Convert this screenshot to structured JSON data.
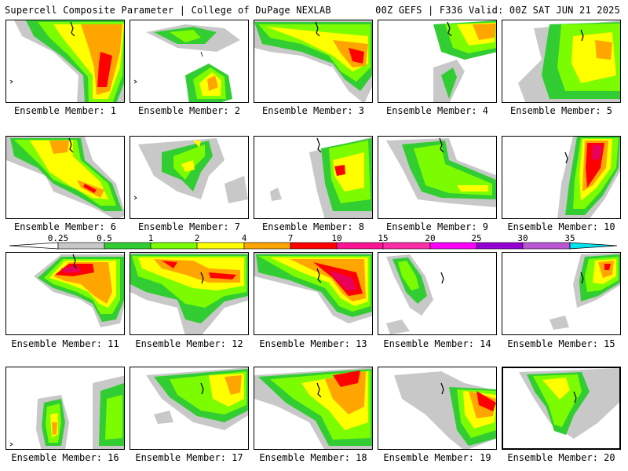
{
  "header": {
    "title_left": "Supercell Composite Parameter | College of DuPage NEXLAB",
    "title_right": "00Z GEFS | F336 Valid: 00Z SAT JUN 21 2025"
  },
  "colorbar": {
    "ticks": [
      "0.25",
      "0.5",
      "1",
      "2",
      "4",
      "7",
      "10",
      "15",
      "20",
      "25",
      "30",
      "35"
    ],
    "colors": [
      "#c8c8c8",
      "#32cd32",
      "#7cfc00",
      "#ffff00",
      "#ffa500",
      "#ff0000",
      "#ff1493",
      "#ff2da6",
      "#ff00ff",
      "#9400d3",
      "#ba55d3",
      "#00e5ee"
    ]
  },
  "members": [
    {
      "label": "Ensemble Member: 1"
    },
    {
      "label": "Ensemble Member: 2"
    },
    {
      "label": "Ensemble Member: 3"
    },
    {
      "label": "Ensemble Member: 4"
    },
    {
      "label": "Ensemble Member: 5"
    },
    {
      "label": "Ensemble Member: 6"
    },
    {
      "label": "Ensemble Member: 7"
    },
    {
      "label": "Ensemble Member: 8"
    },
    {
      "label": "Ensemble Member: 9"
    },
    {
      "label": "Ensemble Member: 10"
    },
    {
      "label": "Ensemble Member: 11"
    },
    {
      "label": "Ensemble Member: 12"
    },
    {
      "label": "Ensemble Member: 13"
    },
    {
      "label": "Ensemble Member: 14"
    },
    {
      "label": "Ensemble Member: 15"
    },
    {
      "label": "Ensemble Member: 16"
    },
    {
      "label": "Ensemble Member: 17"
    },
    {
      "label": "Ensemble Member: 18"
    },
    {
      "label": "Ensemble Member: 19"
    },
    {
      "label": "Ensemble Member: 20"
    }
  ]
}
